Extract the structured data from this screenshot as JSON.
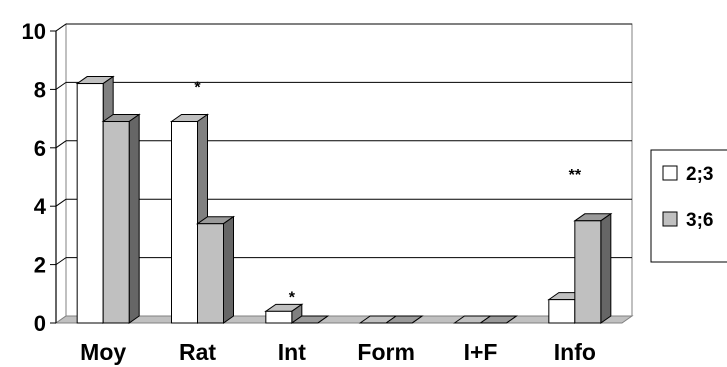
{
  "chart_data": {
    "type": "bar",
    "categories": [
      "Moy",
      "Rat",
      "Int",
      "Form",
      "I+F",
      "Info"
    ],
    "series": [
      {
        "name": "2;3",
        "values": [
          8.2,
          6.9,
          0.4,
          0,
          0,
          0.8
        ],
        "color": "#ffffff"
      },
      {
        "name": "3;6",
        "values": [
          6.9,
          3.4,
          0,
          0,
          0,
          3.5
        ],
        "color": "#c0c0c0"
      }
    ],
    "y_ticks": [
      "0",
      "2",
      "4",
      "6",
      "8",
      "10"
    ],
    "ylim": [
      0,
      10
    ],
    "grid": true,
    "annotations": [
      {
        "text": "*",
        "category": "Rat",
        "value": 8.1
      },
      {
        "text": "*",
        "category": "Int",
        "value": 0.9
      },
      {
        "text": "**",
        "category": "Info",
        "value": 5.1
      }
    ],
    "legend_position": "right"
  }
}
